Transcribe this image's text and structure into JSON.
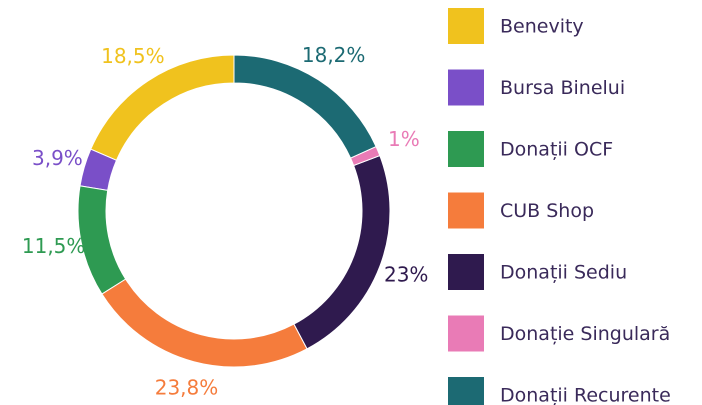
{
  "chart_data": {
    "type": "donut",
    "categories": [
      "Benevity",
      "Bursa Binelui",
      "Donații OCF",
      "CUB Shop",
      "Donații Sediu",
      "Donație Singulară",
      "Donații Recurente"
    ],
    "values": [
      18.5,
      3.9,
      11.5,
      23.8,
      23,
      1,
      18.2
    ],
    "value_labels": [
      "18,5%",
      "3,9%",
      "11,5%",
      "23,8%",
      "23%",
      "1%",
      "18,2%"
    ],
    "colors": [
      "#f0c21e",
      "#7a4fc8",
      "#2e9a52",
      "#f57c3c",
      "#2f1a4e",
      "#e97bb6",
      "#1c6a73"
    ],
    "legend": "right"
  }
}
